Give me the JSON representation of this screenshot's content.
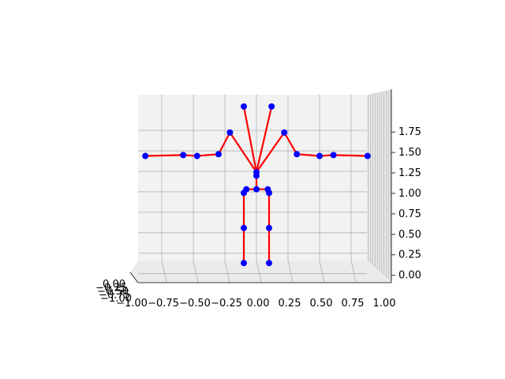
{
  "chart_data": {
    "type": "scatter",
    "title": "",
    "xlabel": "",
    "ylabel": "",
    "zlabel": "",
    "projection": "3d",
    "grid": true,
    "xlim": [
      -1.0,
      1.0
    ],
    "zlim": [
      -0.1,
      2.0
    ],
    "x_ticks": [
      "−1.00",
      "−0.75",
      "−0.50",
      "−0.25",
      "0.00",
      "0.25",
      "0.50",
      "0.75",
      "1.00"
    ],
    "x_tick_values": [
      -1.0,
      -0.75,
      -0.5,
      -0.25,
      0.0,
      0.25,
      0.5,
      0.75,
      1.0
    ],
    "z_ticks": [
      "0.00",
      "0.25",
      "0.50",
      "0.75",
      "1.00",
      "1.25",
      "1.50",
      "1.75"
    ],
    "z_tick_values": [
      0.0,
      0.25,
      0.5,
      0.75,
      1.0,
      1.25,
      1.5,
      1.75
    ],
    "y_ticks": [
      "−1.00",
      "−0.75",
      "−0.50",
      "−0.25",
      "0.00"
    ],
    "marker_color": "#0000ff",
    "line_color": "#ff0000",
    "points": [
      {
        "x": -0.1,
        "z": 1.87
      },
      {
        "x": 0.12,
        "z": 1.87
      },
      {
        "x": -0.21,
        "z": 1.58
      },
      {
        "x": 0.22,
        "z": 1.58
      },
      {
        "x": -0.88,
        "z": 1.32
      },
      {
        "x": -0.58,
        "z": 1.33
      },
      {
        "x": -0.47,
        "z": 1.32
      },
      {
        "x": -0.3,
        "z": 1.34
      },
      {
        "x": 0.32,
        "z": 1.34
      },
      {
        "x": 0.5,
        "z": 1.32
      },
      {
        "x": 0.61,
        "z": 1.33
      },
      {
        "x": 0.88,
        "z": 1.32
      },
      {
        "x": 0.0,
        "z": 1.14
      },
      {
        "x": 0.0,
        "z": 1.1
      },
      {
        "x": -0.08,
        "z": 0.95
      },
      {
        "x": 0.0,
        "z": 0.95
      },
      {
        "x": 0.09,
        "z": 0.95
      },
      {
        "x": -0.1,
        "z": 0.91
      },
      {
        "x": 0.1,
        "z": 0.91
      },
      {
        "x": -0.1,
        "z": 0.52
      },
      {
        "x": 0.1,
        "z": 0.52
      },
      {
        "x": -0.1,
        "z": 0.13
      },
      {
        "x": 0.1,
        "z": 0.13
      }
    ],
    "edges": [
      [
        12,
        0
      ],
      [
        12,
        1
      ],
      [
        12,
        2
      ],
      [
        12,
        3
      ],
      [
        2,
        7
      ],
      [
        7,
        6
      ],
      [
        6,
        5
      ],
      [
        5,
        4
      ],
      [
        3,
        8
      ],
      [
        8,
        9
      ],
      [
        9,
        10
      ],
      [
        10,
        11
      ],
      [
        12,
        13
      ],
      [
        13,
        15
      ],
      [
        15,
        14
      ],
      [
        15,
        16
      ],
      [
        14,
        17
      ],
      [
        16,
        18
      ],
      [
        17,
        19
      ],
      [
        19,
        21
      ],
      [
        18,
        20
      ],
      [
        20,
        22
      ]
    ]
  }
}
